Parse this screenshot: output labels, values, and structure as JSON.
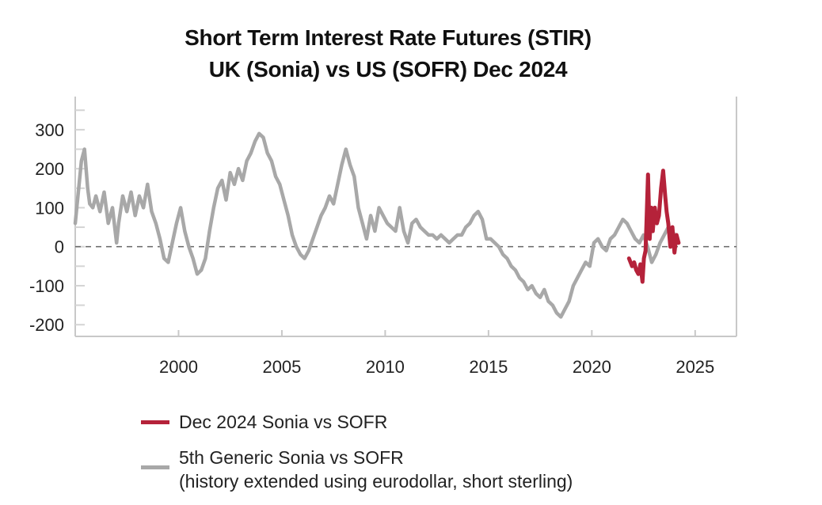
{
  "chart_data": {
    "type": "line",
    "title": "Short Term Interest Rate Futures (STIR)",
    "subtitle": "UK (Sonia) vs US (SOFR) Dec 2024",
    "xlabel": "",
    "ylabel": "",
    "xlim": [
      1995.0,
      2027.0
    ],
    "ylim": [
      -230,
      385
    ],
    "x_ticks": [
      2000,
      2005,
      2010,
      2015,
      2020,
      2025
    ],
    "y_ticks": [
      300,
      200,
      100,
      0,
      -100,
      -200
    ],
    "grid": false,
    "zero_line": "dashed",
    "legend_position": "bottom",
    "series": [
      {
        "name": "Dec 2024 Sonia vs SOFR",
        "color": "#b5223a",
        "x": [
          2021.8,
          2021.95,
          2022.05,
          2022.15,
          2022.25,
          2022.35,
          2022.45,
          2022.52,
          2022.6,
          2022.65,
          2022.72,
          2022.8,
          2022.88,
          2022.95,
          2023.05,
          2023.15,
          2023.25,
          2023.35,
          2023.45,
          2023.55,
          2023.62,
          2023.7,
          2023.8,
          2023.9,
          2024.0,
          2024.1,
          2024.2
        ],
        "y": [
          -30,
          -50,
          -40,
          -60,
          -70,
          -45,
          -90,
          -30,
          -10,
          70,
          185,
          20,
          100,
          40,
          100,
          60,
          80,
          150,
          195,
          130,
          90,
          60,
          0,
          50,
          -15,
          30,
          10
        ]
      },
      {
        "name": "5th Generic Sonia vs SOFR",
        "name_line2": "(history extended using eurodollar, short sterling)",
        "color": "#a8a8a8",
        "x": [
          1995.0,
          1995.15,
          1995.3,
          1995.45,
          1995.6,
          1995.7,
          1995.85,
          1996.0,
          1996.2,
          1996.4,
          1996.6,
          1996.8,
          1997.0,
          1997.1,
          1997.3,
          1997.5,
          1997.7,
          1997.9,
          1998.1,
          1998.3,
          1998.5,
          1998.7,
          1998.9,
          1999.1,
          1999.3,
          1999.5,
          1999.7,
          1999.9,
          2000.1,
          2000.3,
          2000.5,
          2000.7,
          2000.9,
          2001.1,
          2001.3,
          2001.5,
          2001.7,
          2001.9,
          2002.1,
          2002.3,
          2002.5,
          2002.7,
          2002.9,
          2003.1,
          2003.3,
          2003.5,
          2003.7,
          2003.9,
          2004.1,
          2004.3,
          2004.5,
          2004.7,
          2004.9,
          2005.1,
          2005.3,
          2005.5,
          2005.7,
          2005.9,
          2006.1,
          2006.3,
          2006.5,
          2006.7,
          2006.9,
          2007.1,
          2007.3,
          2007.5,
          2007.7,
          2007.9,
          2008.1,
          2008.3,
          2008.5,
          2008.7,
          2008.9,
          2009.1,
          2009.3,
          2009.5,
          2009.7,
          2009.9,
          2010.1,
          2010.3,
          2010.5,
          2010.7,
          2010.9,
          2011.1,
          2011.3,
          2011.5,
          2011.7,
          2011.9,
          2012.1,
          2012.3,
          2012.5,
          2012.7,
          2012.9,
          2013.1,
          2013.3,
          2013.5,
          2013.7,
          2013.9,
          2014.1,
          2014.3,
          2014.5,
          2014.7,
          2014.9,
          2015.1,
          2015.3,
          2015.5,
          2015.7,
          2015.9,
          2016.1,
          2016.3,
          2016.5,
          2016.7,
          2016.9,
          2017.1,
          2017.3,
          2017.5,
          2017.7,
          2017.9,
          2018.1,
          2018.3,
          2018.5,
          2018.7,
          2018.9,
          2019.1,
          2019.3,
          2019.5,
          2019.7,
          2019.9,
          2020.1,
          2020.3,
          2020.5,
          2020.7,
          2020.9,
          2021.1,
          2021.3,
          2021.5,
          2021.7,
          2021.9,
          2022.1,
          2022.3,
          2022.5,
          2022.7,
          2022.9,
          2023.1,
          2023.3,
          2023.5,
          2023.7,
          2023.9,
          2024.1
        ],
        "y": [
          60,
          140,
          220,
          250,
          150,
          110,
          100,
          130,
          90,
          140,
          60,
          100,
          10,
          60,
          130,
          90,
          140,
          80,
          130,
          100,
          160,
          90,
          60,
          20,
          -30,
          -40,
          10,
          60,
          100,
          40,
          0,
          -30,
          -70,
          -60,
          -30,
          40,
          100,
          150,
          170,
          120,
          190,
          160,
          200,
          170,
          220,
          240,
          270,
          290,
          280,
          240,
          220,
          180,
          160,
          120,
          80,
          30,
          0,
          -20,
          -30,
          -10,
          20,
          50,
          80,
          100,
          130,
          110,
          160,
          210,
          250,
          210,
          180,
          100,
          60,
          20,
          80,
          40,
          100,
          80,
          60,
          50,
          40,
          100,
          40,
          10,
          60,
          70,
          50,
          40,
          30,
          30,
          20,
          30,
          20,
          10,
          20,
          30,
          30,
          50,
          60,
          80,
          90,
          70,
          20,
          20,
          10,
          0,
          -20,
          -30,
          -50,
          -60,
          -80,
          -90,
          -110,
          -100,
          -120,
          -130,
          -110,
          -140,
          -150,
          -170,
          -180,
          -160,
          -140,
          -100,
          -80,
          -60,
          -40,
          -50,
          10,
          20,
          0,
          -10,
          20,
          30,
          50,
          70,
          60,
          40,
          20,
          10,
          30,
          0,
          -40,
          -20,
          10,
          30,
          50,
          40,
          20
        ]
      }
    ]
  }
}
